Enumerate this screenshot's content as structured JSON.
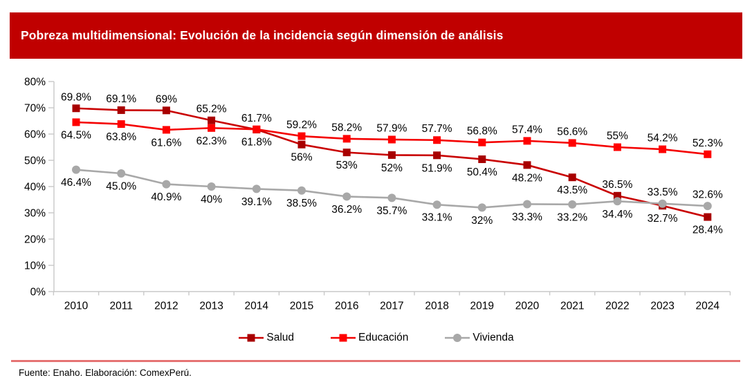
{
  "header": {
    "title": "Pobreza multidimensional: Evolución de la incidencia según dimensión de análisis",
    "bg_color": "#C00000",
    "text_color": "#FFFFFF"
  },
  "chart_data": {
    "type": "line",
    "title": "Pobreza multidimensional: Evolución de la incidencia según dimensión de análisis",
    "categories": [
      "2010",
      "2011",
      "2012",
      "2013",
      "2014",
      "2015",
      "2016",
      "2017",
      "2018",
      "2019",
      "2020",
      "2021",
      "2022",
      "2023",
      "2024"
    ],
    "ylim": [
      0,
      80
    ],
    "y_tick_labels": [
      "0%",
      "10%",
      "20%",
      "30%",
      "40%",
      "50%",
      "60%",
      "70%",
      "80%"
    ],
    "grid": false,
    "legend_position": "bottom",
    "axis_color": "#C8C8C8",
    "series": [
      {
        "name": "Salud",
        "marker": "square",
        "line_color": "#C90000",
        "marker_color": "#A80000",
        "values": [
          69.8,
          69.1,
          69,
          65.2,
          61.7,
          56,
          53,
          52,
          51.9,
          50.4,
          48.2,
          43.5,
          36.5,
          32.7,
          28.4
        ],
        "labels": [
          "69.8%",
          "69.1%",
          "69%",
          "65.2%",
          "61.7%",
          "56%",
          "53%",
          "52%",
          "51.9%",
          "50.4%",
          "48.2%",
          "43.5%",
          "36.5%",
          "32.7%",
          "28.4%"
        ],
        "label_side": [
          "above",
          "above",
          "above",
          "above",
          "above",
          "below",
          "below",
          "below",
          "below",
          "below",
          "below",
          "below",
          "above",
          "below",
          "below"
        ]
      },
      {
        "name": "Educación",
        "marker": "square",
        "line_color": "#F40000",
        "marker_color": "#FF0000",
        "values": [
          64.5,
          63.8,
          61.6,
          62.3,
          61.8,
          59.2,
          58.2,
          57.9,
          57.7,
          56.8,
          57.4,
          56.6,
          55,
          54.2,
          52.3
        ],
        "labels": [
          "64.5%",
          "63.8%",
          "61.6%",
          "62.3%",
          "61.8%",
          "59.2%",
          "58.2%",
          "57.9%",
          "57.7%",
          "56.8%",
          "57.4%",
          "56.6%",
          "55%",
          "54.2%",
          "52.3%"
        ],
        "label_side": [
          "below",
          "below",
          "below",
          "below",
          "below",
          "above",
          "above",
          "above",
          "above",
          "above",
          "above",
          "above",
          "above",
          "above",
          "above"
        ]
      },
      {
        "name": "Vivienda",
        "marker": "circle",
        "line_color": "#A8A8A8",
        "marker_color": "#A8A8A8",
        "values": [
          46.4,
          45.0,
          40.9,
          40,
          39.1,
          38.5,
          36.2,
          35.7,
          33.1,
          32,
          33.3,
          33.2,
          34.4,
          33.5,
          32.6
        ],
        "labels": [
          "46.4%",
          "45.0%",
          "40.9%",
          "40%",
          "39.1%",
          "38.5%",
          "36.2%",
          "35.7%",
          "33.1%",
          "32%",
          "33.3%",
          "33.2%",
          "34.4%",
          "33.5%",
          "32.6%"
        ],
        "label_side": [
          "below",
          "below",
          "below",
          "below",
          "below",
          "below",
          "below",
          "below",
          "below",
          "below",
          "below",
          "below",
          "below",
          "above",
          "above"
        ]
      }
    ]
  },
  "footer": {
    "divider_color": "#E57373",
    "source_text": "Fuente: Enaho. Elaboración: ComexPerú."
  }
}
